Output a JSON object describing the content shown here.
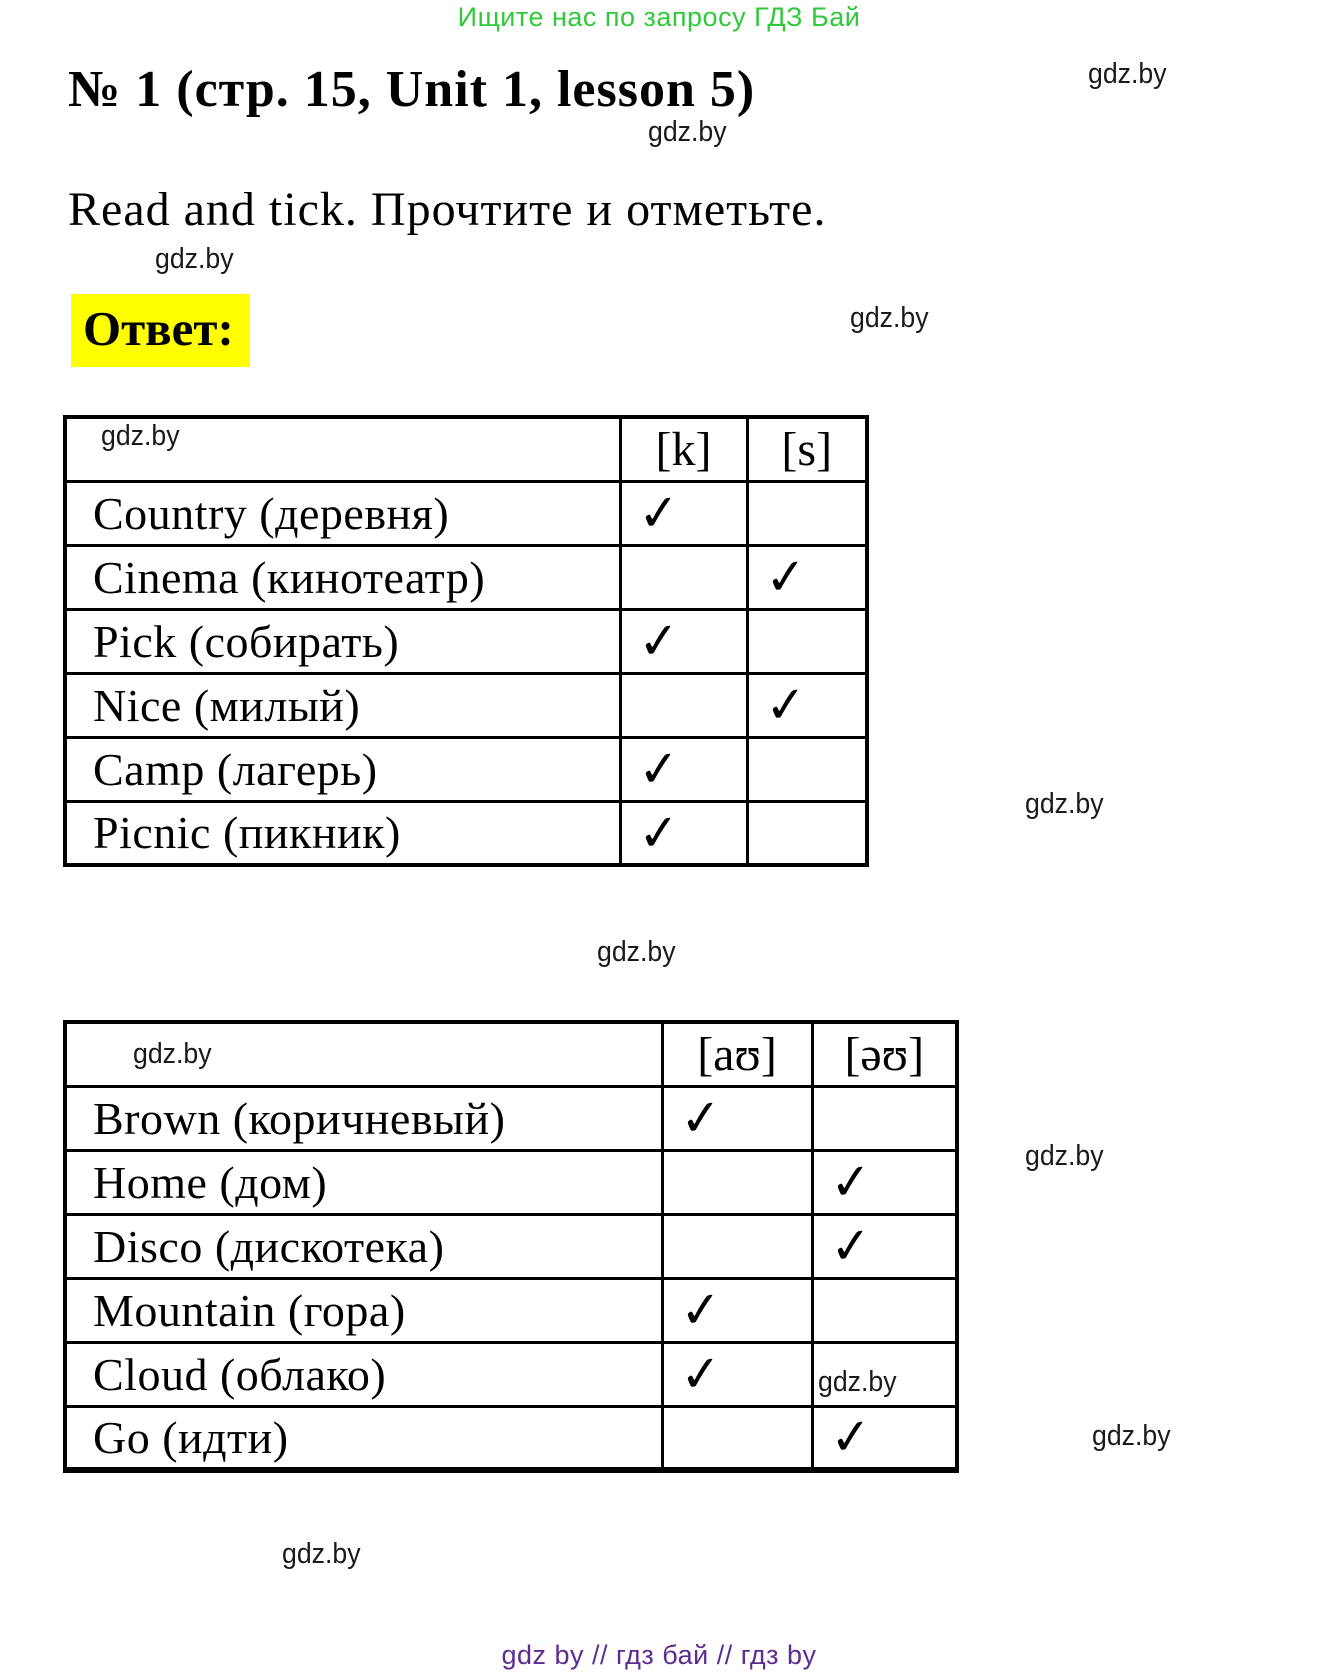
{
  "banner": {
    "text": "Ищите нас по запросу ГДЗ Бай",
    "color": "#2fc93a"
  },
  "title": "№ 1 (стр. 15, Unit 1, lesson 5)",
  "instruction": "Read and tick. Прочтите и отметьте.",
  "answer_label": "Ответ:",
  "highlight_color": "#ffff00",
  "watermark_text": "gdz.by",
  "check_symbol": "✓",
  "tables": [
    {
      "columns": [
        "[k]",
        "[s]"
      ],
      "rows": [
        {
          "word": "Country (деревня)",
          "checked_column": 0
        },
        {
          "word": "Cinema (кинотеатр)",
          "checked_column": 1
        },
        {
          "word": "Pick (собирать)",
          "checked_column": 0
        },
        {
          "word": "Nice (милый)",
          "checked_column": 1
        },
        {
          "word": "Camp (лагерь)",
          "checked_column": 0
        },
        {
          "word": "Picnic (пикник)",
          "checked_column": 0
        }
      ]
    },
    {
      "columns": [
        "[aʊ]",
        "[əʊ]"
      ],
      "rows": [
        {
          "word": "Brown (коричневый)",
          "checked_column": 0
        },
        {
          "word": "Home (дом)",
          "checked_column": 1
        },
        {
          "word": "Disco (дискотека)",
          "checked_column": 1
        },
        {
          "word": "Mountain (гора)",
          "checked_column": 0
        },
        {
          "word": "Cloud (облако)",
          "checked_column": 0
        },
        {
          "word": "Go (идти)",
          "checked_column": 1
        }
      ]
    }
  ],
  "footer": {
    "text": "gdz by  //  гдз бай  //  гдз by",
    "color": "#5c2d91"
  }
}
